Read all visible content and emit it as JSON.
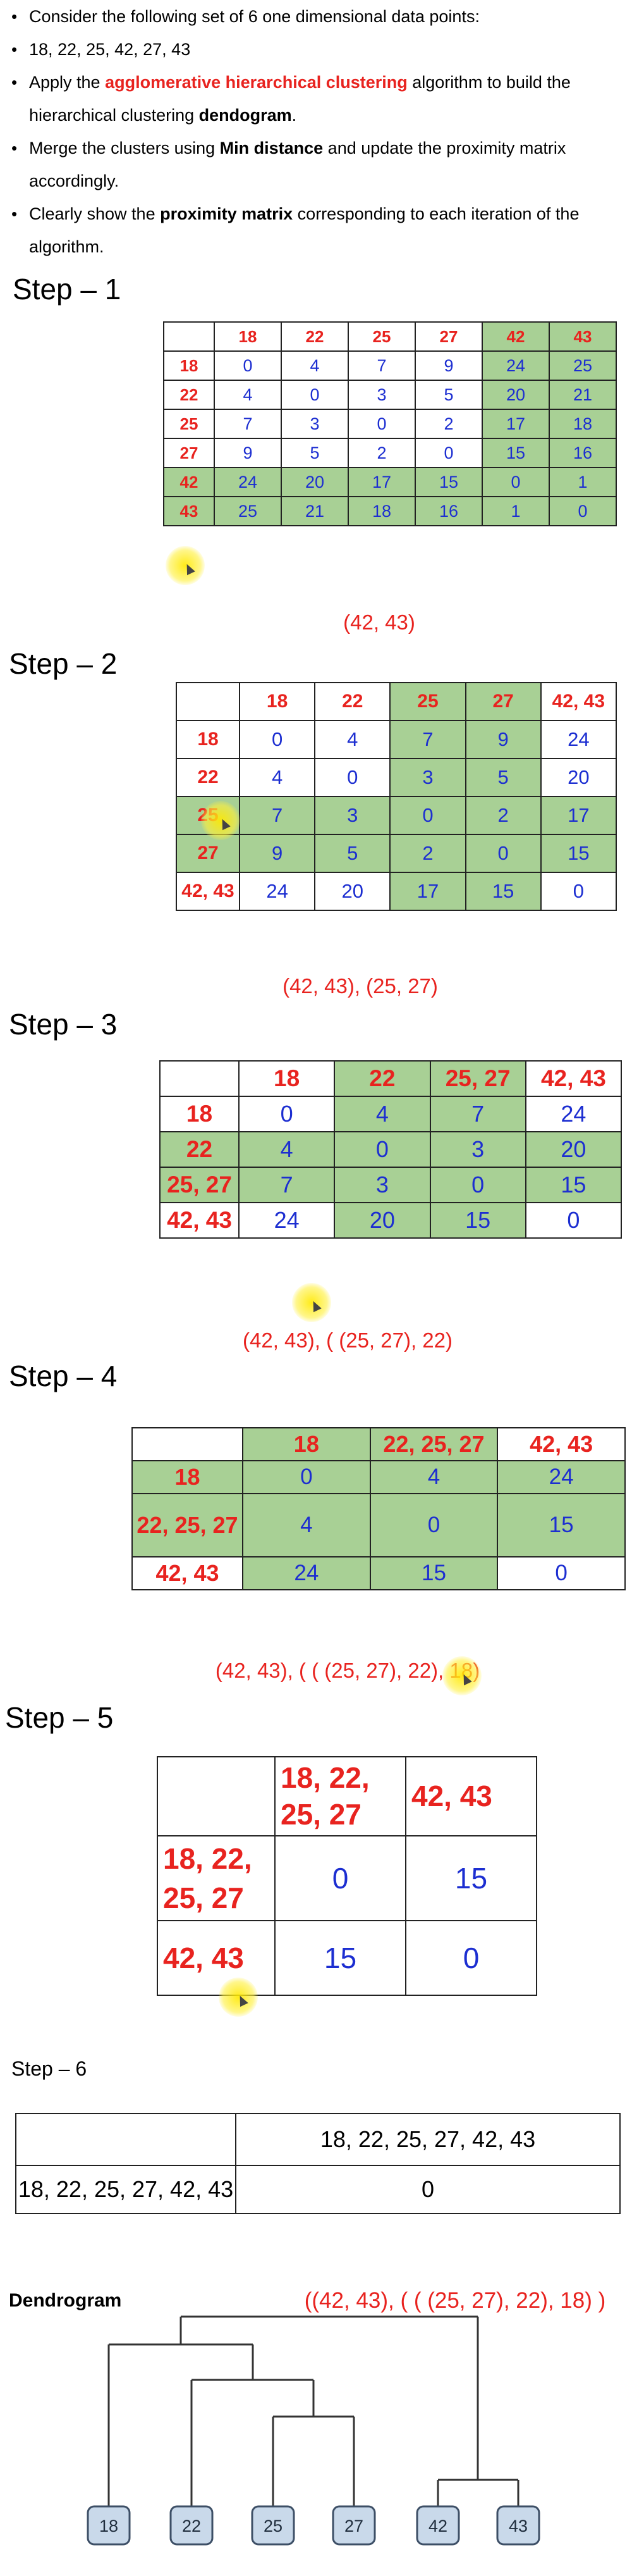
{
  "intro": {
    "bullets": [
      {
        "parts": [
          {
            "text": "Consider the following set of 6 one dimensional data points:",
            "style": ""
          }
        ]
      },
      {
        "parts": [
          {
            "text": "18, 22, 25, 42, 27, 43",
            "style": ""
          }
        ]
      },
      {
        "parts": [
          {
            "text": "Apply the ",
            "style": ""
          },
          {
            "text": "agglomerative hierarchical clustering",
            "style": "red"
          },
          {
            "text": " algorithm to build the hierarchical clustering ",
            "style": ""
          },
          {
            "text": "dendogram",
            "style": "b"
          },
          {
            "text": ".",
            "style": ""
          }
        ]
      },
      {
        "parts": [
          {
            "text": "Merge the clusters using ",
            "style": ""
          },
          {
            "text": "Min distance",
            "style": "b"
          },
          {
            "text": " and update the proximity matrix accordingly.",
            "style": ""
          }
        ]
      },
      {
        "parts": [
          {
            "text": "Clearly show the ",
            "style": ""
          },
          {
            "text": "proximity matrix",
            "style": "b"
          },
          {
            "text": " corresponding to each iteration of the algorithm.",
            "style": ""
          }
        ]
      }
    ]
  },
  "steps": [
    {
      "title": "Step – 1",
      "labels": [
        "18",
        "22",
        "25",
        "27",
        "42",
        "43"
      ],
      "matrix": [
        [
          0,
          4,
          7,
          9,
          24,
          25
        ],
        [
          4,
          0,
          3,
          5,
          20,
          21
        ],
        [
          7,
          3,
          0,
          2,
          17,
          18
        ],
        [
          9,
          5,
          2,
          0,
          15,
          16
        ],
        [
          24,
          20,
          17,
          15,
          0,
          1
        ],
        [
          25,
          21,
          18,
          16,
          1,
          0
        ]
      ],
      "highlight": [
        4,
        5
      ],
      "merge": "(42, 43)"
    },
    {
      "title": "Step – 2",
      "labels": [
        "18",
        "22",
        "25",
        "27",
        "42, 43"
      ],
      "matrix": [
        [
          0,
          4,
          7,
          9,
          24
        ],
        [
          4,
          0,
          3,
          5,
          20
        ],
        [
          7,
          3,
          0,
          2,
          17
        ],
        [
          9,
          5,
          2,
          0,
          15
        ],
        [
          24,
          20,
          17,
          15,
          0
        ]
      ],
      "highlight": [
        2,
        3
      ],
      "merge": "(42, 43), (25, 27)"
    },
    {
      "title": "Step – 3",
      "labels": [
        "18",
        "22",
        "25, 27",
        "42, 43"
      ],
      "matrix": [
        [
          0,
          4,
          7,
          24
        ],
        [
          4,
          0,
          3,
          20
        ],
        [
          7,
          3,
          0,
          15
        ],
        [
          24,
          20,
          15,
          0
        ]
      ],
      "highlight": [
        1,
        2
      ],
      "merge": "(42, 43), ( (25, 27), 22)"
    },
    {
      "title": "Step – 4",
      "labels": [
        "18",
        "22, 25, 27",
        "42, 43"
      ],
      "matrix": [
        [
          0,
          4,
          24
        ],
        [
          4,
          0,
          15
        ],
        [
          24,
          15,
          0
        ]
      ],
      "highlight": [
        0,
        1
      ],
      "merge": "(42, 43), ( ( (25, 27), 22), 18)"
    },
    {
      "title": "Step – 5",
      "labels": [
        "18, 22, 25, 27",
        "42, 43"
      ],
      "matrix": [
        [
          0,
          15
        ],
        [
          15,
          0
        ]
      ],
      "highlight": [],
      "merge": ""
    },
    {
      "title": "Step – 6",
      "labels": [
        "18, 22, 25, 27, 42, 43"
      ],
      "matrix": [
        [
          0
        ]
      ],
      "highlight": [],
      "merge": ""
    }
  ],
  "dendrogram": {
    "title": "Dendrogram",
    "expression": "((42, 43), ( ( (25, 27), 22), 18) )",
    "leaves": [
      "18",
      "22",
      "25",
      "27",
      "42",
      "43"
    ]
  },
  "colors": {
    "header_red": "#e8231f",
    "value_blue": "#1c2ed1",
    "highlight_green": "#a8d095",
    "leaf_fill": "#c9d9ea",
    "leaf_border": "#3d4f66",
    "cursor_yellow": "#ffe600"
  }
}
